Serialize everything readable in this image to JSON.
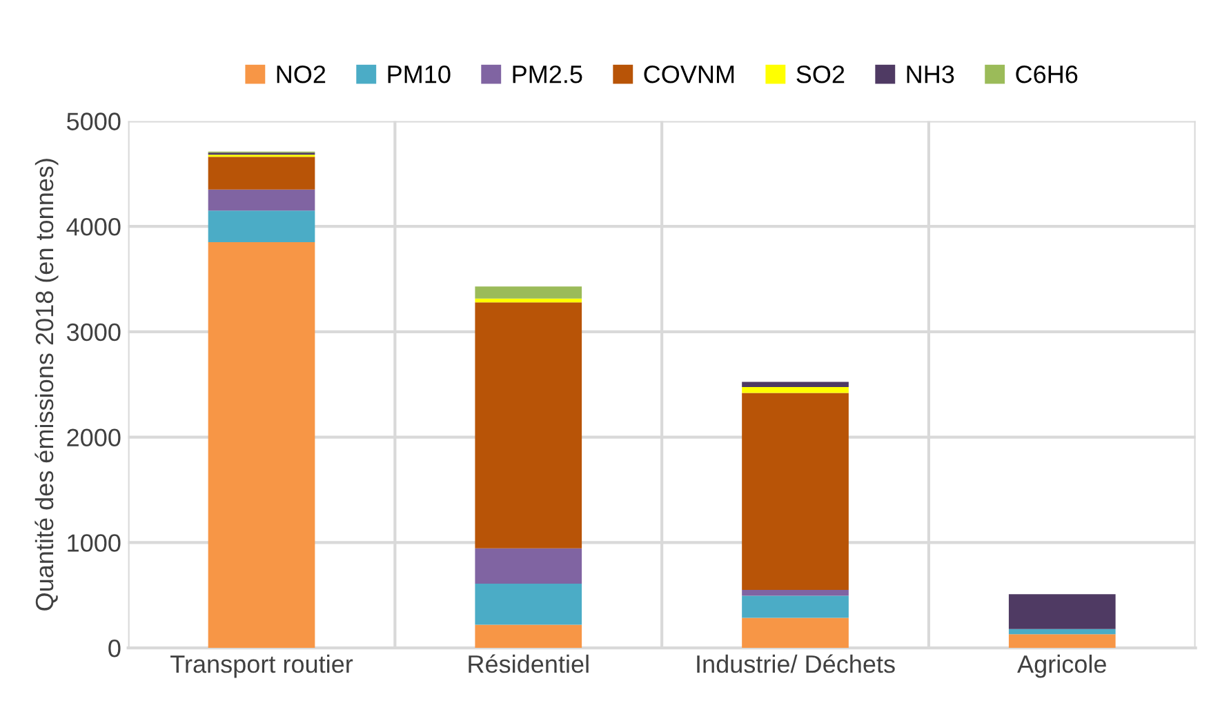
{
  "chart_data": {
    "type": "bar",
    "stacked": true,
    "ylabel": "Quantité des émissions 2018 (en tonnes)",
    "categories": [
      "Transport routier",
      "Résidentiel",
      "Industrie/ Déchets",
      "Agricole"
    ],
    "series": [
      {
        "name": "NO2",
        "color": "#f79646",
        "values": [
          3850,
          220,
          285,
          130
        ]
      },
      {
        "name": "PM10",
        "color": "#4bacc6",
        "values": [
          300,
          390,
          210,
          50
        ]
      },
      {
        "name": "PM2.5",
        "color": "#8064a2",
        "values": [
          200,
          335,
          55,
          0
        ]
      },
      {
        "name": "COVNM",
        "color": "#b85407",
        "values": [
          310,
          2335,
          1870,
          0
        ]
      },
      {
        "name": "SO2",
        "color": "#ffff00",
        "values": [
          20,
          35,
          55,
          0
        ]
      },
      {
        "name": "NH3",
        "color": "#4f3a63",
        "values": [
          20,
          0,
          50,
          330
        ]
      },
      {
        "name": "C6H6",
        "color": "#9bbb59",
        "values": [
          10,
          115,
          0,
          0
        ]
      }
    ],
    "ylim": [
      0,
      5000
    ],
    "yticks": [
      0,
      1000,
      2000,
      3000,
      4000,
      5000
    ],
    "grid": true,
    "legend": "top"
  }
}
